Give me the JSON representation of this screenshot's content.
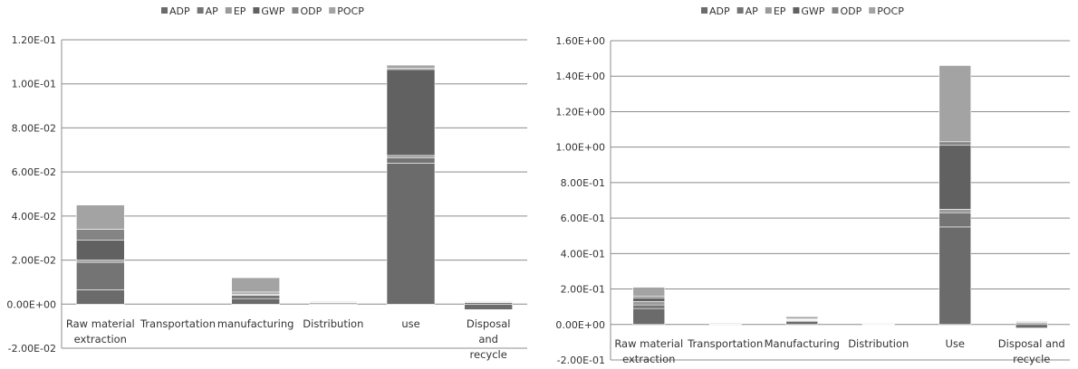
{
  "colors": {
    "ADP": "#6b6b6b",
    "AP": "#747474",
    "EP": "#9a9a9a",
    "GWP": "#616161",
    "ODP": "#848484",
    "POCP": "#a3a3a3",
    "gridline": "#8c8c8c",
    "axis": "#8c8c8c"
  },
  "chart_data": [
    {
      "type": "bar",
      "stacked": true,
      "title": "",
      "xlabel": "",
      "ylabel": "",
      "legend": [
        "ADP",
        "AP",
        "EP",
        "GWP",
        "ODP",
        "POCP"
      ],
      "legend_position": "top",
      "grid": true,
      "ylim": [
        -0.02,
        0.12
      ],
      "yticks": [
        -0.02,
        0.0,
        0.02,
        0.04,
        0.06,
        0.08,
        0.1,
        0.12
      ],
      "ytick_labels": [
        "-2.00E-02",
        "0.00E+00",
        "2.00E-02",
        "4.00E-02",
        "6.00E-02",
        "8.00E-02",
        "1.00E-01",
        "1.20E-01"
      ],
      "categories": [
        "Raw material extraction",
        "Transportation",
        "manufacturing",
        "Distribution",
        "use",
        "Disposal and recycle"
      ],
      "series": [
        {
          "name": "ADP",
          "values": [
            0.0065,
            0.0,
            0.0025,
            0.0005,
            0.064,
            -0.0025
          ]
        },
        {
          "name": "AP",
          "values": [
            0.0125,
            0.0,
            0.0015,
            0.0003,
            0.0025,
            0.0008
          ]
        },
        {
          "name": "EP",
          "values": [
            0.001,
            0.0,
            0.0005,
            0.0001,
            0.001,
            0.0002
          ]
        },
        {
          "name": "GWP",
          "values": [
            0.009,
            0.0,
            0.0005,
            0.0002,
            0.039,
            0.0003
          ]
        },
        {
          "name": "ODP",
          "values": [
            0.005,
            0.0,
            0.0005,
            0.0001,
            0.0005,
            0.0001
          ]
        },
        {
          "name": "POCP",
          "values": [
            0.011,
            0.0,
            0.0065,
            0.0001,
            0.0015,
            0.0001
          ]
        }
      ]
    },
    {
      "type": "bar",
      "stacked": true,
      "title": "",
      "xlabel": "",
      "ylabel": "",
      "legend": [
        "ADP",
        "AP",
        "EP",
        "GWP",
        "ODP",
        "POCP"
      ],
      "legend_position": "top",
      "grid": true,
      "ylim": [
        -0.2,
        1.6
      ],
      "yticks": [
        -0.2,
        0.0,
        0.2,
        0.4,
        0.6,
        0.8,
        1.0,
        1.2,
        1.4,
        1.6
      ],
      "ytick_labels": [
        "-2.00E-01",
        "0.00E+00",
        "2.00E-01",
        "4.00E-01",
        "6.00E-01",
        "8.00E-01",
        "1.00E+00",
        "1.20E+00",
        "1.40E+00",
        "1.60E+00"
      ],
      "categories": [
        "Raw material extraction",
        "Transportation",
        "Manufacturing",
        "Distribution",
        "Use",
        "Disposal and recycle"
      ],
      "series": [
        {
          "name": "ADP",
          "values": [
            0.09,
            0.003,
            0.018,
            0.002,
            0.55,
            -0.02
          ]
        },
        {
          "name": "AP",
          "values": [
            0.02,
            0.001,
            0.005,
            0.001,
            0.08,
            0.01
          ]
        },
        {
          "name": "EP",
          "values": [
            0.02,
            0.0005,
            0.002,
            0.0005,
            0.02,
            0.002
          ]
        },
        {
          "name": "GWP",
          "values": [
            0.02,
            0.001,
            0.005,
            0.001,
            0.36,
            0.005
          ]
        },
        {
          "name": "ODP",
          "values": [
            0.01,
            0.0005,
            0.002,
            0.0005,
            0.02,
            0.002
          ]
        },
        {
          "name": "POCP",
          "values": [
            0.05,
            0.002,
            0.012,
            0.001,
            0.43,
            0.001
          ]
        }
      ]
    }
  ]
}
